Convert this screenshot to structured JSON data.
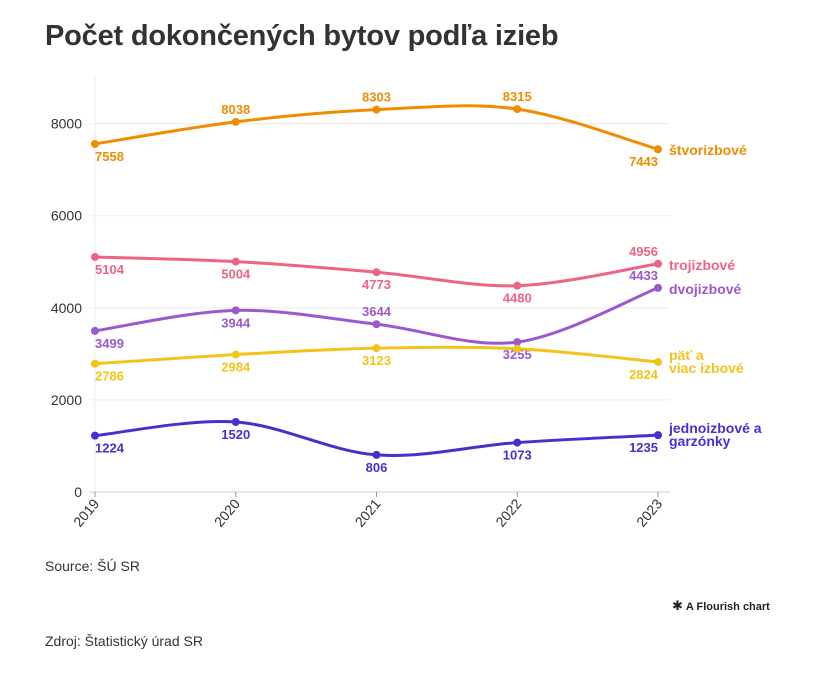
{
  "title": "Počet dokončených bytov podľa izieb",
  "source": "Source: ŠÚ SR",
  "flourish_label": "A Flourish chart",
  "footer": "Zdroj: Štatistický úrad SR",
  "chart_data": {
    "type": "line",
    "x": [
      "2019",
      "2020",
      "2021",
      "2022",
      "2023"
    ],
    "ylim": [
      0,
      9000
    ],
    "yticks": [
      0,
      2000,
      4000,
      6000,
      8000
    ],
    "grid": true,
    "legend": "direct labels at line ends",
    "series": [
      {
        "name": "štvorizbové",
        "color": "#F08C00",
        "values": [
          7558,
          8038,
          8303,
          8315,
          7443
        ]
      },
      {
        "name": "trojizbové",
        "color": "#EE6584",
        "values": [
          5104,
          5004,
          4773,
          4480,
          4956
        ]
      },
      {
        "name": "dvojizbové",
        "color": "#9B59D0",
        "values": [
          3499,
          3944,
          3644,
          3255,
          4433
        ]
      },
      {
        "name": "päť a viac izbové",
        "color": "#F2C419",
        "values": [
          2786,
          2984,
          3123,
          3111,
          2824
        ]
      },
      {
        "name": "jednoizbové a garzónky",
        "color": "#4A2FD0",
        "values": [
          1224,
          1520,
          806,
          1073,
          1235
        ]
      }
    ]
  }
}
